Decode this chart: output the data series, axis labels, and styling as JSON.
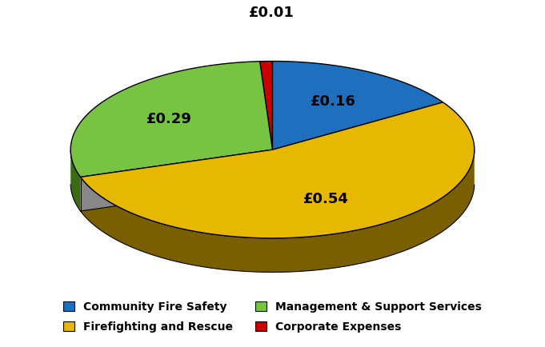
{
  "labels": [
    "Community Fire Safety",
    "Firefighting and Rescue",
    "Management & Support Services",
    "Corporate Expenses"
  ],
  "values": [
    16,
    54,
    29,
    1
  ],
  "display_labels": [
    "£0.16",
    "£0.54",
    "£0.29",
    "£0.01"
  ],
  "colors": [
    "#1F6FBF",
    "#E6B800",
    "#76C442",
    "#CC0000"
  ],
  "shadow_colors": [
    "#0A3D6B",
    "#7A5F00",
    "#3A6B14",
    "#660000"
  ],
  "background_color": "#FFFFFF",
  "legend_labels": [
    "Community Fire Safety",
    "Firefighting and Rescue",
    "Management & Support Services",
    "Corporate Expenses"
  ],
  "label_fontsize": 13
}
